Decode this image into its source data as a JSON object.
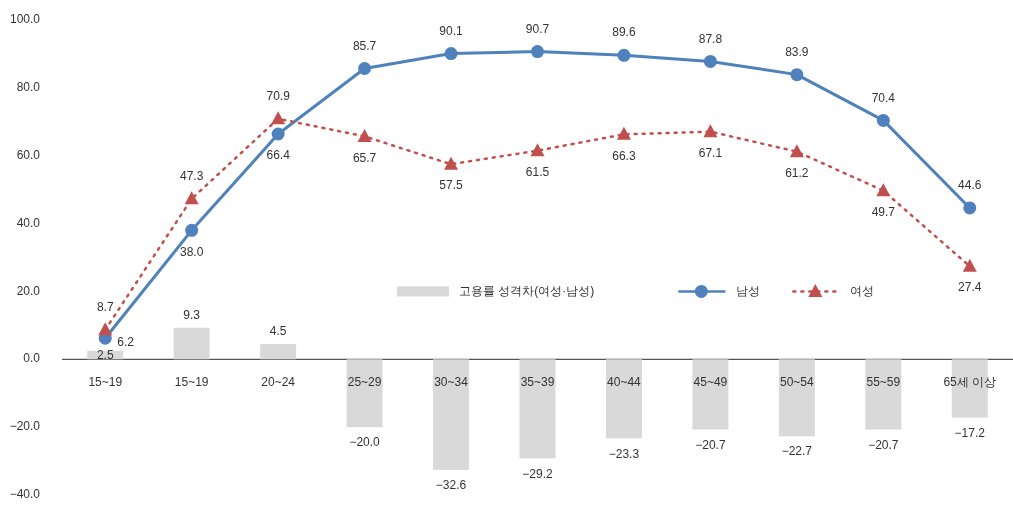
{
  "chart_data": {
    "type": "line",
    "categories": [
      "15~19",
      "15~19",
      "20~24",
      "25~29",
      "30~34",
      "35~39",
      "40~44",
      "45~49",
      "50~54",
      "55~59",
      "65세 이상"
    ],
    "ylim": [
      -40,
      100
    ],
    "yticks": [
      {
        "value": -40,
        "label": "−40.0"
      },
      {
        "value": -20,
        "label": "−20.0"
      },
      {
        "value": 0,
        "label": "0.0"
      },
      {
        "value": 20,
        "label": "20.0"
      },
      {
        "value": 40,
        "label": "40.0"
      },
      {
        "value": 60,
        "label": "60.0"
      },
      {
        "value": 80,
        "label": "80.0"
      },
      {
        "value": 100,
        "label": "100.0"
      }
    ],
    "legend": "center",
    "series": [
      {
        "name": "고용률 성격차(여성·남성)",
        "type": "bar",
        "color": "#d9d9d9",
        "values": [
          2.5,
          9.3,
          4.5,
          -20.0,
          -32.6,
          -29.2,
          -23.3,
          -20.7,
          -22.7,
          -20.7,
          -17.2
        ],
        "value_labels": [
          "2.5",
          "9.3",
          "4.5",
          "−20.0",
          "−32.6",
          "−29.2",
          "−23.3",
          "−20.7",
          "−22.7",
          "−20.7",
          "−17.2"
        ]
      },
      {
        "name": "남성",
        "color": "#4f81bd",
        "marker": "circle",
        "line_style": "solid",
        "values": [
          6.2,
          38.0,
          66.4,
          85.7,
          90.1,
          90.7,
          89.6,
          87.8,
          83.9,
          70.4,
          44.6
        ],
        "value_labels": [
          "6.2",
          "38.0",
          "66.4",
          "85.7",
          "90.1",
          "90.7",
          "89.6",
          "87.8",
          "83.9",
          "70.4",
          "44.6"
        ]
      },
      {
        "name": "여성",
        "color": "#c0504d",
        "marker": "triangle",
        "line_style": "dotted",
        "values": [
          8.7,
          47.3,
          70.9,
          65.7,
          57.5,
          61.5,
          66.3,
          67.1,
          61.2,
          49.7,
          27.4
        ],
        "value_labels": [
          "8.7",
          "47.3",
          "70.9",
          "65.7",
          "57.5",
          "61.5",
          "66.3",
          "67.1",
          "61.2",
          "49.7",
          "27.4"
        ]
      }
    ]
  }
}
